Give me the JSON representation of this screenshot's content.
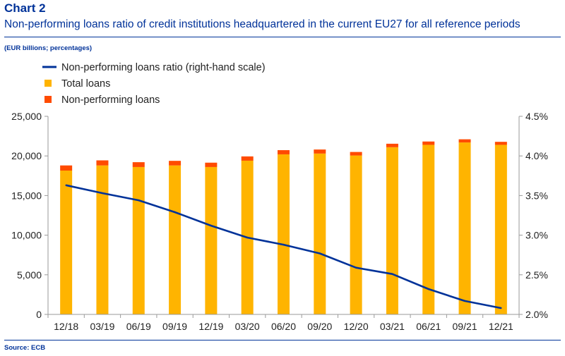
{
  "header": {
    "label": "Chart 2",
    "title": "Non-performing loans ratio of credit institutions headquartered in the current EU27 for all reference periods",
    "units": "(EUR billions; percentages)"
  },
  "footer": {
    "source": "Source: ECB"
  },
  "colors": {
    "total": "#FFB400",
    "npl": "#FF4B00",
    "line": "#003299"
  },
  "chart_data": {
    "type": "bar",
    "categories": [
      "12/18",
      "03/19",
      "06/19",
      "09/19",
      "12/19",
      "03/20",
      "06/20",
      "09/20",
      "12/20",
      "03/21",
      "06/21",
      "09/21",
      "12/21"
    ],
    "series": [
      {
        "name": "Total loans",
        "kind": "stacked-bar",
        "axis": "left",
        "values": [
          18150,
          18800,
          18600,
          18800,
          18600,
          19400,
          20200,
          20300,
          20050,
          21100,
          21400,
          21700,
          21400
        ]
      },
      {
        "name": "Non-performing loans",
        "kind": "stacked-bar",
        "axis": "left",
        "values": [
          650,
          640,
          610,
          580,
          550,
          540,
          530,
          510,
          450,
          440,
          420,
          400,
          380
        ]
      },
      {
        "name": "Non-performing loans ratio (right-hand scale)",
        "kind": "line",
        "axis": "right",
        "values": [
          3.63,
          3.53,
          3.44,
          3.29,
          3.12,
          2.97,
          2.88,
          2.77,
          2.59,
          2.51,
          2.32,
          2.17,
          2.08
        ]
      }
    ],
    "y_left": {
      "min": 0,
      "max": 25000,
      "ticks": [
        0,
        5000,
        10000,
        15000,
        20000,
        25000
      ],
      "labels": [
        "0",
        "5,000",
        "10,000",
        "15,000",
        "20,000",
        "25,000"
      ]
    },
    "y_right": {
      "min": 2.0,
      "max": 4.5,
      "ticks": [
        2.0,
        2.5,
        3.0,
        3.5,
        4.0,
        4.5
      ],
      "labels": [
        "2.0%",
        "2.5%",
        "3.0%",
        "3.5%",
        "4.0%",
        "4.5%"
      ]
    },
    "legend": {
      "placement": "top-left"
    },
    "grid": false
  }
}
